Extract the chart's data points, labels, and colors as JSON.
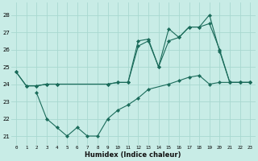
{
  "bg_color": "#c8ece6",
  "line_color": "#1a6b5a",
  "grid_color": "#a8d8d0",
  "xlabel": "Humidex (Indice chaleur)",
  "ylim": [
    20.5,
    28.7
  ],
  "xlim": [
    -0.5,
    23.5
  ],
  "yticks": [
    21,
    22,
    23,
    24,
    25,
    26,
    27,
    28
  ],
  "xticks": [
    0,
    1,
    2,
    3,
    4,
    5,
    6,
    7,
    8,
    9,
    10,
    11,
    12,
    13,
    14,
    15,
    16,
    17,
    18,
    19,
    20,
    21,
    22,
    23
  ],
  "line1_x": [
    0,
    1,
    2,
    3,
    4,
    9,
    10,
    11,
    12,
    13,
    14,
    15,
    16,
    17,
    18,
    19,
    20,
    21,
    22,
    23
  ],
  "line1_y": [
    24.7,
    23.9,
    23.9,
    24.0,
    24.0,
    24.0,
    24.1,
    24.1,
    26.5,
    26.6,
    25.0,
    27.2,
    26.7,
    27.3,
    27.3,
    28.0,
    25.9,
    24.1,
    24.1,
    24.1
  ],
  "line2_x": [
    0,
    1,
    2,
    3,
    4,
    9,
    10,
    11,
    12,
    13,
    14,
    15,
    16,
    17,
    18,
    19,
    20,
    21,
    22,
    23
  ],
  "line2_y": [
    24.7,
    23.9,
    23.9,
    24.0,
    24.0,
    24.0,
    24.1,
    24.1,
    26.2,
    26.5,
    25.0,
    26.5,
    26.7,
    27.3,
    27.3,
    27.5,
    26.0,
    24.1,
    24.1,
    24.1
  ],
  "line3_x": [
    2,
    3,
    4,
    5,
    6,
    7,
    8,
    9,
    10,
    11,
    12,
    13,
    15,
    16,
    17,
    18,
    19,
    20,
    21,
    22,
    23
  ],
  "line3_y": [
    23.5,
    22.0,
    21.5,
    21.0,
    21.5,
    21.0,
    21.0,
    22.0,
    22.5,
    22.8,
    23.2,
    23.7,
    24.0,
    24.2,
    24.4,
    24.5,
    24.0,
    24.1,
    24.1,
    24.1,
    24.1
  ]
}
